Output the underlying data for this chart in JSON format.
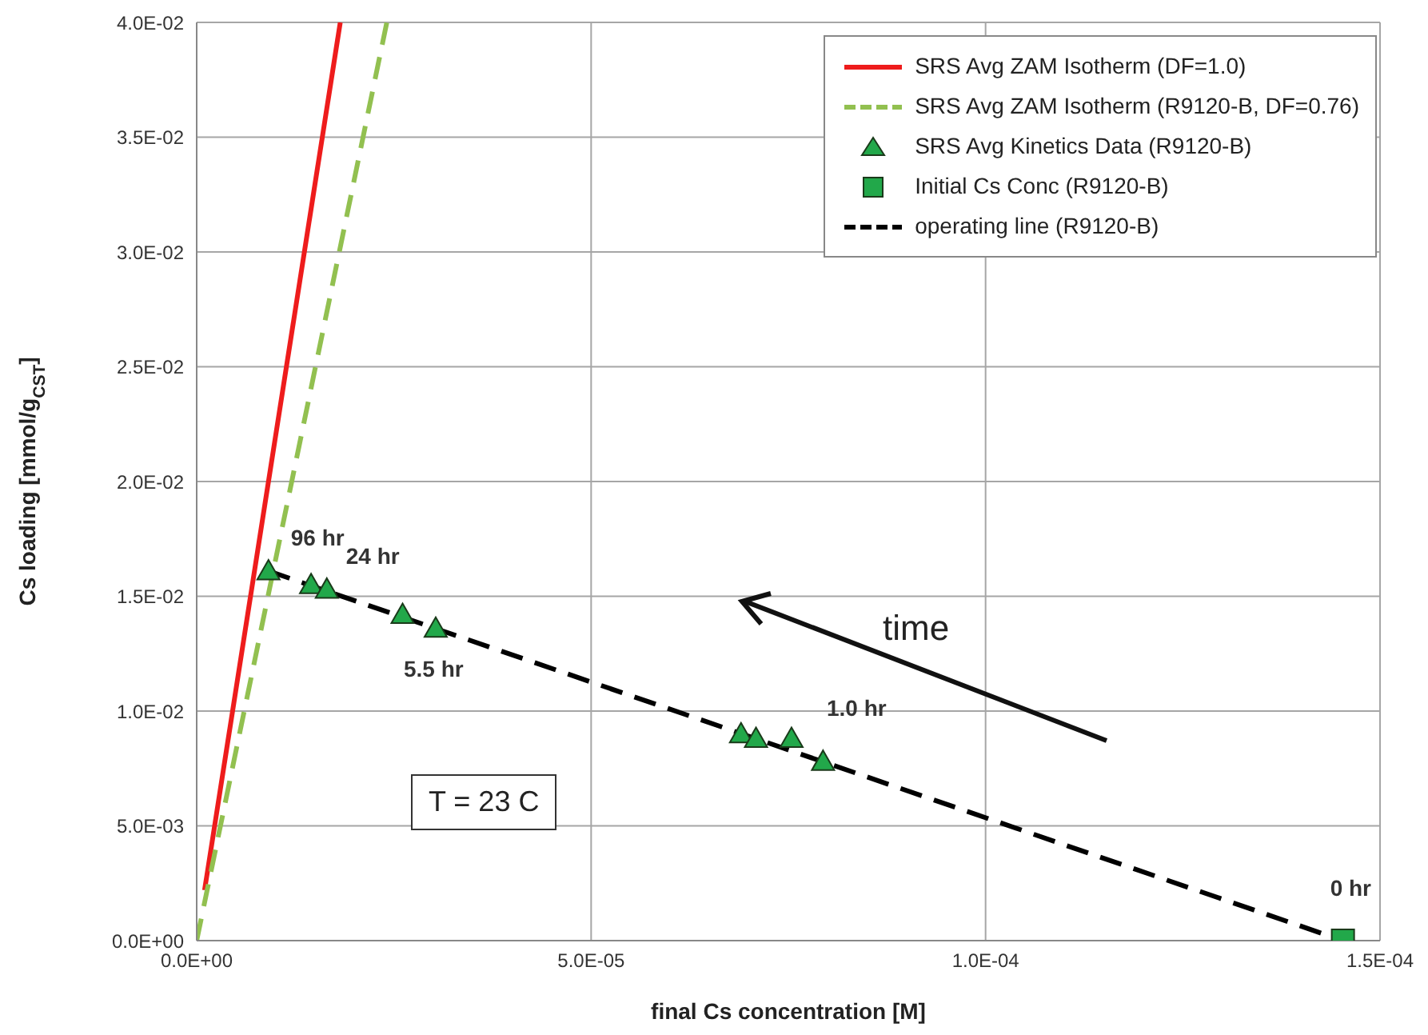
{
  "chart_data": {
    "type": "line",
    "xlabel": "final Cs concentration [M]",
    "ylabel": "Cs loading [mmol/g$_{CST}$]",
    "xlim": [
      0,
      0.00015
    ],
    "ylim": [
      0,
      0.04
    ],
    "xticks": [
      {
        "value": 0,
        "label": "0.0E+00"
      },
      {
        "value": 5e-05,
        "label": "5.0E-05"
      },
      {
        "value": 0.0001,
        "label": "1.0E-04"
      },
      {
        "value": 0.00015,
        "label": "1.5E-04"
      }
    ],
    "yticks": [
      {
        "value": 0,
        "label": "0.0E+00"
      },
      {
        "value": 0.005,
        "label": "5.0E-03"
      },
      {
        "value": 0.01,
        "label": "1.0E-02"
      },
      {
        "value": 0.015,
        "label": "1.5E-02"
      },
      {
        "value": 0.02,
        "label": "2.0E-02"
      },
      {
        "value": 0.025,
        "label": "2.5E-02"
      },
      {
        "value": 0.03,
        "label": "3.0E-02"
      },
      {
        "value": 0.035,
        "label": "3.5E-02"
      },
      {
        "value": 0.04,
        "label": "4.0E-02"
      }
    ],
    "grid": true,
    "legend": "top right",
    "series": [
      {
        "name": "SRS Avg ZAM Isotherm (DF=1.0)",
        "color": "#ee1c1c",
        "marker": "none",
        "line_style": "solid",
        "x": [
          1e-06,
          1.82e-05
        ],
        "values": [
          0.0022,
          0.04
        ]
      },
      {
        "name": "SRS Avg ZAM Isotherm (R9120-B, DF=0.76)",
        "color": "#92c050",
        "marker": "none",
        "line_style": "dashed",
        "x": [
          0,
          2.41e-05
        ],
        "values": [
          0,
          0.04
        ]
      },
      {
        "name": "SRS Avg Kinetics Data (R9120-B)",
        "type": "scatter",
        "color": "#22a84a",
        "marker": "triangle",
        "x": [
          9.1e-06,
          1.45e-05,
          1.65e-05,
          2.61e-05,
          3.03e-05,
          6.9e-05,
          7.09e-05,
          7.54e-05,
          7.94e-05
        ],
        "values": [
          0.0161,
          0.0155,
          0.0153,
          0.0142,
          0.0136,
          0.009,
          0.0088,
          0.0088,
          0.0078
        ]
      },
      {
        "name": "Initial Cs Conc (R9120-B)",
        "type": "scatter",
        "color": "#22a84a",
        "marker": "square",
        "x": [
          0.0001453
        ],
        "values": [
          0
        ]
      },
      {
        "name": "operating line (R9120-B)",
        "color": "#000000",
        "marker": "none",
        "line_style": "dashed",
        "x": [
          9.1e-06,
          0.0001453
        ],
        "values": [
          0.0161,
          0
        ]
      }
    ],
    "annotations": [
      {
        "text": "96 hr",
        "x": 9.1e-06,
        "y": 0.0161
      },
      {
        "text": "24 hr",
        "x": 1.65e-05,
        "y": 0.0153
      },
      {
        "text": "5.5 hr",
        "x": 3.03e-05,
        "y": 0.0136
      },
      {
        "text": "1.0 hr",
        "x": 7.54e-05,
        "y": 0.0088
      },
      {
        "text": "0 hr",
        "x": 0.0001453,
        "y": 0
      },
      "T = 23 C",
      "time"
    ]
  }
}
